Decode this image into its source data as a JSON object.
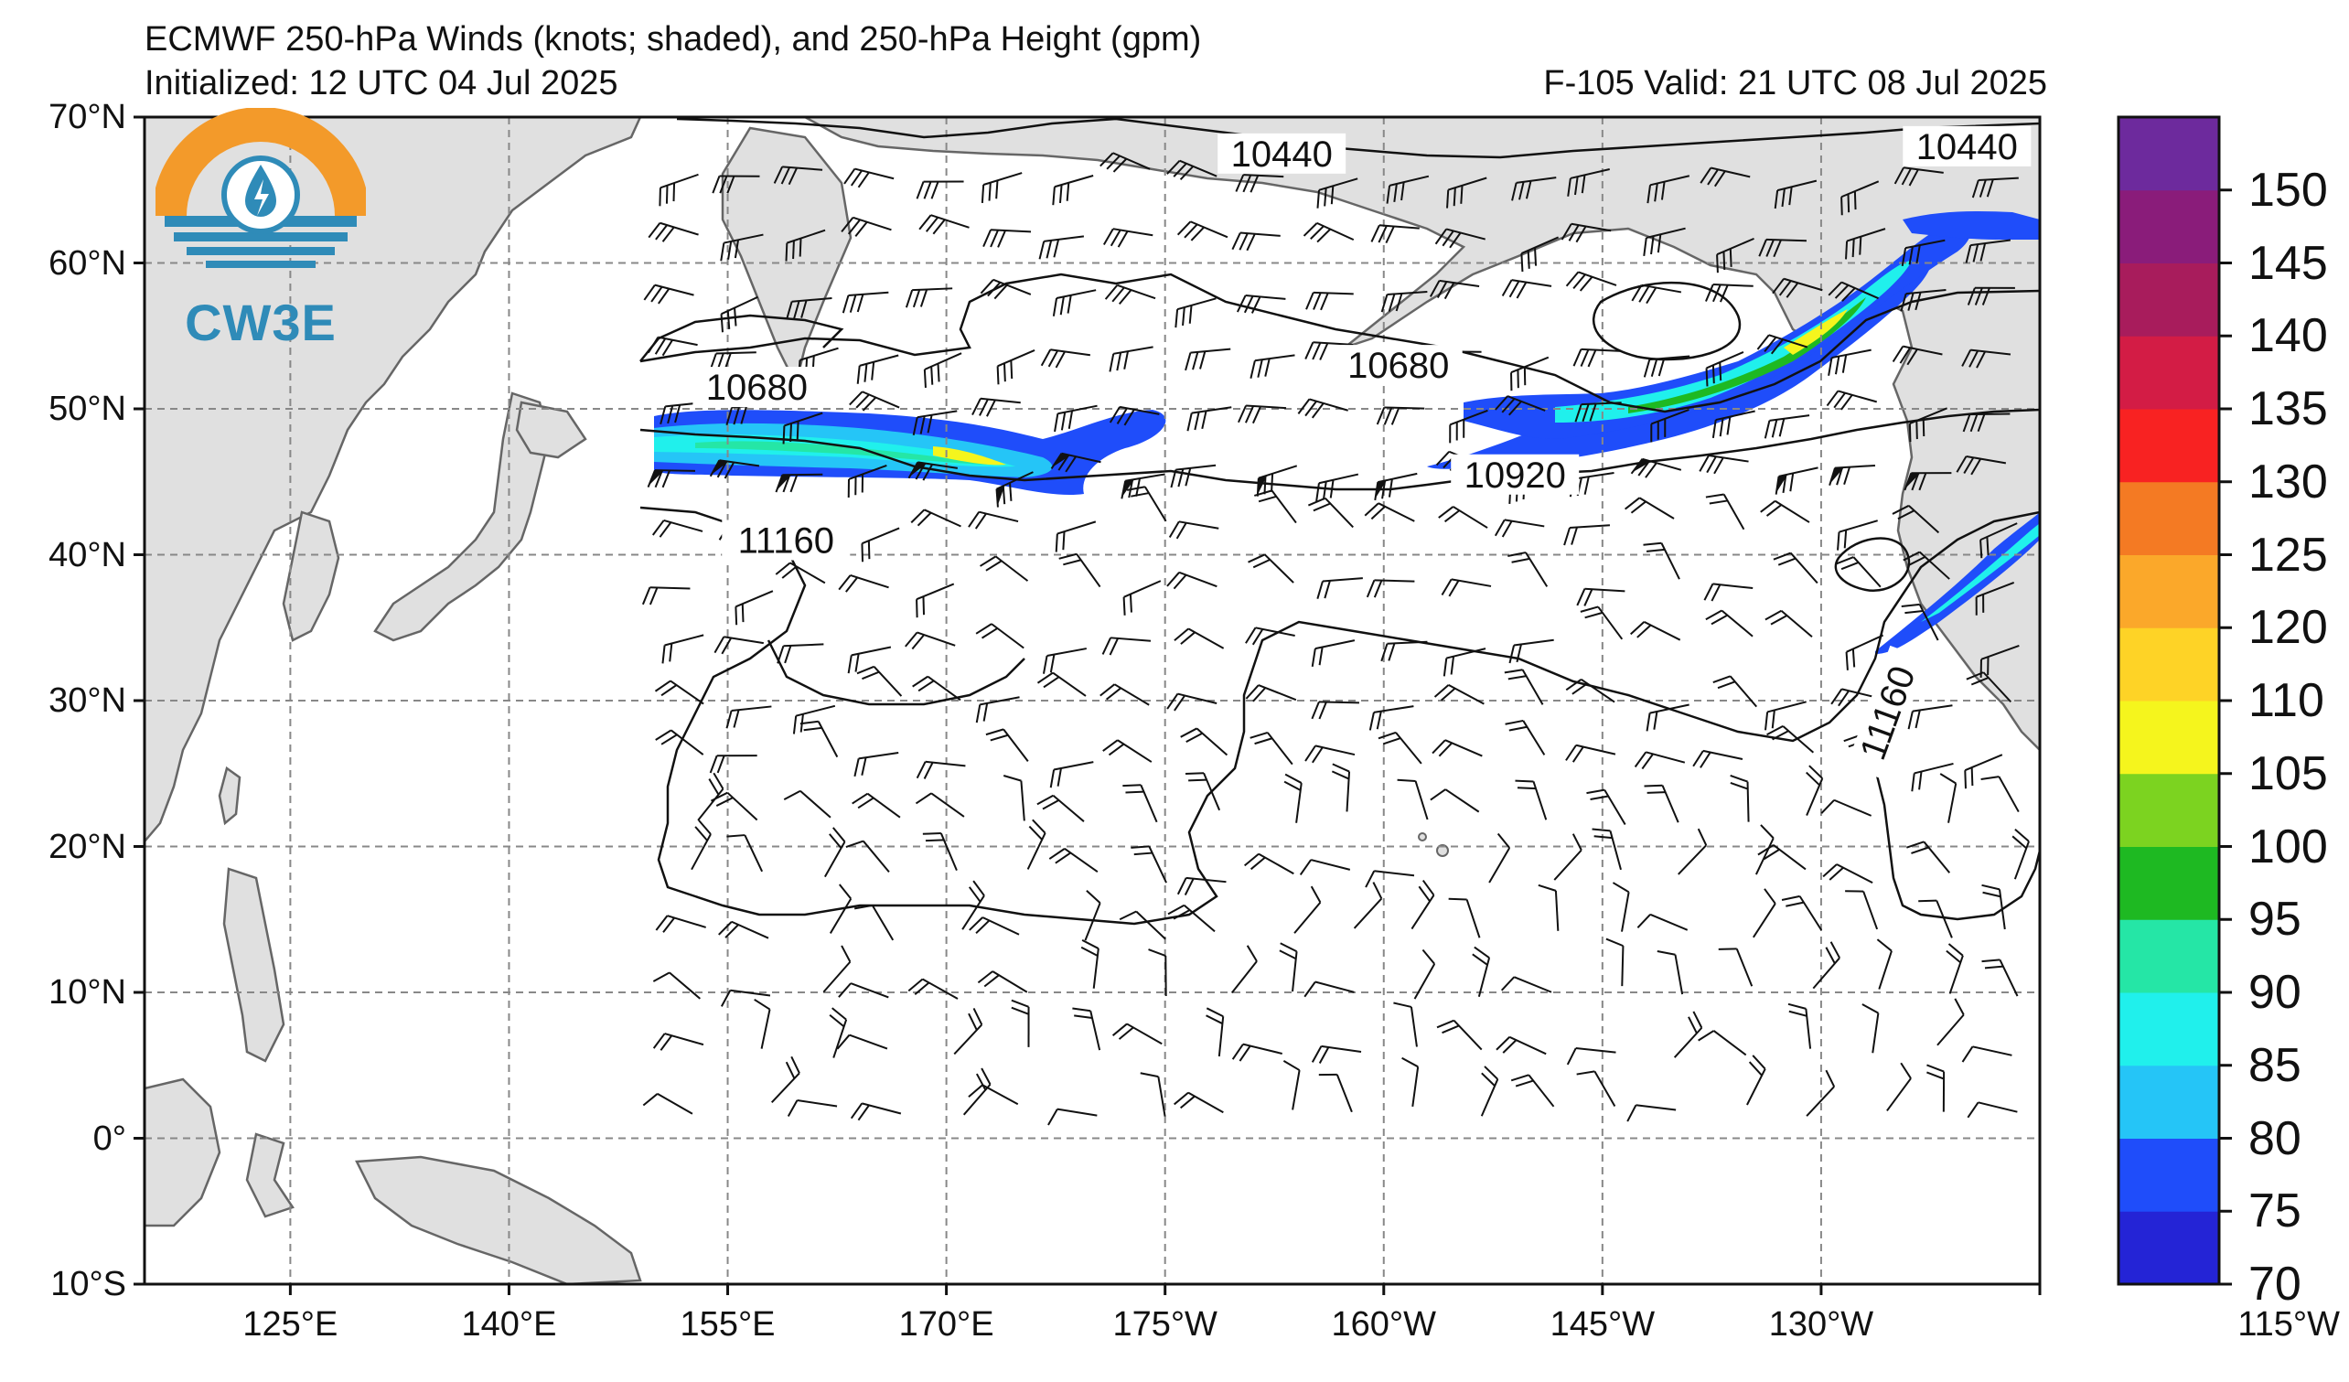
{
  "title": {
    "main": "ECMWF 250-hPa Winds (knots; shaded), and 250-hPa Height (gpm)",
    "initialized": "Initialized: 12 UTC 04 Jul 2025",
    "valid": "F-105  Valid: 21 UTC 08 Jul 2025"
  },
  "logo": {
    "text": "CW3E",
    "colors": {
      "sun": "#f39a2a",
      "water": "#2f8bb8"
    }
  },
  "map": {
    "lon_range": [
      115,
      245
    ],
    "lat_range": [
      -10,
      70
    ],
    "lat_ticks": [
      {
        "value": 70,
        "label": "70°N"
      },
      {
        "value": 60,
        "label": "60°N"
      },
      {
        "value": 50,
        "label": "50°N"
      },
      {
        "value": 40,
        "label": "40°N"
      },
      {
        "value": 30,
        "label": "30°N"
      },
      {
        "value": 20,
        "label": "20°N"
      },
      {
        "value": 10,
        "label": "10°N"
      },
      {
        "value": 0,
        "label": "0°"
      },
      {
        "value": -10,
        "label": "10°S"
      }
    ],
    "lon_ticks": [
      {
        "value": 125,
        "label": "125°E"
      },
      {
        "value": 140,
        "label": "140°E"
      },
      {
        "value": 155,
        "label": "155°E"
      },
      {
        "value": 170,
        "label": "170°E"
      },
      {
        "value": 185,
        "label": "175°W"
      },
      {
        "value": 200,
        "label": "160°W"
      },
      {
        "value": 215,
        "label": "145°W"
      },
      {
        "value": 230,
        "label": "130°W"
      },
      {
        "value": 245,
        "label": "115°W"
      }
    ],
    "grid": true,
    "land_color": "#e0e0e0",
    "coast_color": "#666666",
    "contour_labels": [
      {
        "text": "10440",
        "lon": 193,
        "lat": 67
      },
      {
        "text": "10440",
        "lon": 240,
        "lat": 67.5
      },
      {
        "text": "10680",
        "lon": 157,
        "lat": 51
      },
      {
        "text": "10680",
        "lon": 201,
        "lat": 52.5
      },
      {
        "text": "10920",
        "lon": 209,
        "lat": 45
      },
      {
        "text": "11160",
        "lon": 159,
        "lat": 40.5
      },
      {
        "text": "11160",
        "lon": 235,
        "lat": 29
      }
    ]
  },
  "colorbar": {
    "levels": [
      70,
      75,
      80,
      85,
      90,
      95,
      100,
      105,
      110,
      120,
      125,
      130,
      135,
      140,
      145,
      150,
      155
    ],
    "colors": [
      "#2424d6",
      "#1f4dfa",
      "#25c5f7",
      "#20f0ec",
      "#25e6a6",
      "#1eb922",
      "#7cd320",
      "#f5f51d",
      "#fed326",
      "#fba82a",
      "#f47a23",
      "#f82222",
      "#d31c45",
      "#a81c5c",
      "#8a1c7a",
      "#6d2a9d"
    ],
    "labels": [
      "70",
      "75",
      "80",
      "85",
      "90",
      "95",
      "100",
      "105",
      "110",
      "120",
      "125",
      "130",
      "135",
      "140",
      "145",
      "150"
    ],
    "label_values": [
      70,
      75,
      80,
      85,
      90,
      95,
      100,
      105,
      110,
      120,
      125,
      130,
      135,
      140,
      145,
      150
    ],
    "units": "knots"
  }
}
